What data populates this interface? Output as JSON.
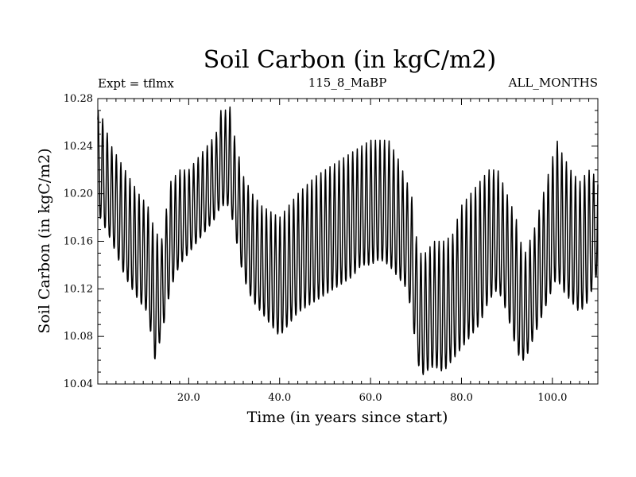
{
  "chart_data": {
    "type": "line",
    "title": "Soil Carbon (in kgC/m2)",
    "left_annotation": "Expt = tflmx",
    "center_annotation": "115_8_MaBP",
    "right_annotation": "ALL_MONTHS",
    "xlabel": "Time (in years since start)",
    "ylabel": "Soil Carbon (in kgC/m2)",
    "xlim": [
      0,
      110
    ],
    "ylim": [
      10.04,
      10.28
    ],
    "x_ticks": [
      20,
      40,
      60,
      80,
      100
    ],
    "x_tick_labels": [
      "20.0",
      "40.0",
      "60.0",
      "80.0",
      "100.0"
    ],
    "y_ticks": [
      10.04,
      10.08,
      10.12,
      10.16,
      10.2,
      10.24,
      10.28
    ],
    "y_tick_labels": [
      "10.04",
      "10.08",
      "10.12",
      "10.16",
      "10.20",
      "10.24",
      "10.28"
    ],
    "series": [
      {
        "name": "Soil Carbon",
        "color": "#000000",
        "note": "monthly values; annual cycle oscillation around a slowly varying mean",
        "annual_envelope": {
          "year": [
            0.5,
            3,
            6,
            9,
            11,
            12.5,
            14,
            16,
            18,
            20,
            22,
            24,
            26,
            27,
            28,
            29,
            30,
            32,
            34,
            36,
            38,
            40,
            44,
            48,
            52,
            56,
            58,
            60,
            62,
            64,
            66,
            68,
            69,
            70,
            71,
            72,
            74,
            76,
            78,
            80,
            82,
            84,
            86,
            88,
            90,
            92,
            93,
            94,
            96,
            98,
            100,
            101,
            102,
            104,
            106,
            108,
            109.5
          ],
          "annual_max": [
            10.27,
            10.24,
            10.22,
            10.2,
            10.19,
            10.17,
            10.16,
            10.21,
            10.22,
            10.22,
            10.23,
            10.24,
            10.25,
            10.27,
            10.27,
            10.275,
            10.25,
            10.215,
            10.2,
            10.19,
            10.185,
            10.18,
            10.2,
            10.215,
            10.225,
            10.235,
            10.24,
            10.245,
            10.245,
            10.245,
            10.23,
            10.21,
            10.2,
            10.165,
            10.15,
            10.15,
            10.16,
            10.16,
            10.165,
            10.19,
            10.2,
            10.21,
            10.22,
            10.22,
            10.2,
            10.18,
            10.16,
            10.15,
            10.17,
            10.2,
            10.23,
            10.245,
            10.235,
            10.22,
            10.21,
            10.22,
            10.215
          ],
          "annual_min": [
            10.18,
            10.16,
            10.13,
            10.11,
            10.1,
            10.06,
            10.08,
            10.12,
            10.14,
            10.15,
            10.16,
            10.17,
            10.18,
            10.19,
            10.19,
            10.19,
            10.17,
            10.13,
            10.11,
            10.1,
            10.09,
            10.08,
            10.1,
            10.11,
            10.12,
            10.13,
            10.14,
            10.14,
            10.145,
            10.14,
            10.13,
            10.12,
            10.1,
            10.07,
            10.045,
            10.05,
            10.055,
            10.05,
            10.06,
            10.07,
            10.08,
            10.09,
            10.11,
            10.12,
            10.1,
            10.07,
            10.06,
            10.06,
            10.08,
            10.1,
            10.12,
            10.13,
            10.12,
            10.11,
            10.1,
            10.11,
            10.13
          ]
        }
      }
    ]
  }
}
